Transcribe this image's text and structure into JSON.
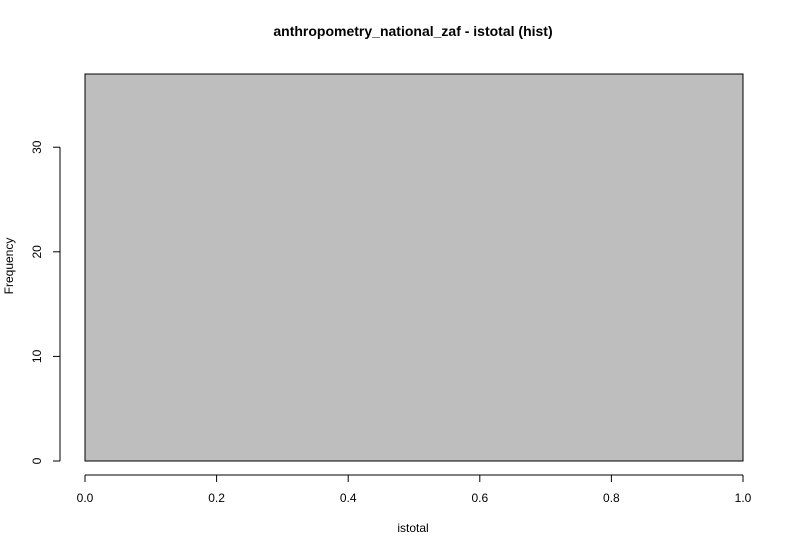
{
  "chart_data": {
    "type": "bar",
    "title": "anthropometry_national_zaf - istotal (hist)",
    "xlabel": "istotal",
    "ylabel": "Frequency",
    "bins": [
      {
        "from": 0.0,
        "to": 1.0,
        "count": 37
      }
    ],
    "xlim": [
      0.0,
      1.0
    ],
    "ylim": [
      0,
      37
    ],
    "xticks": [
      "0.0",
      "0.2",
      "0.4",
      "0.6",
      "0.8",
      "1.0"
    ],
    "yticks": [
      "0",
      "10",
      "20",
      "30"
    ],
    "grid": false,
    "colors": {
      "bar_fill": "#bebebe",
      "bar_stroke": "#000000"
    }
  }
}
